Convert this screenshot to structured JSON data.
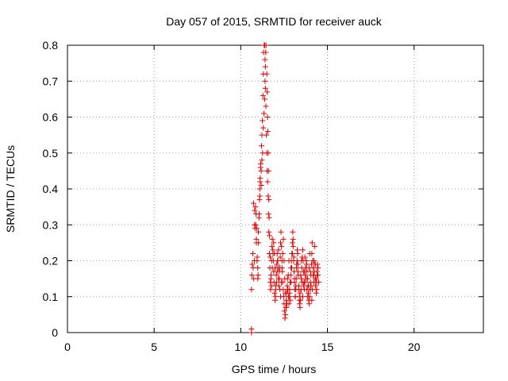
{
  "chart_data": {
    "type": "scatter",
    "title": "Day 057 of 2015, SRMTID for receiver auck",
    "xlabel": "GPS time / hours",
    "ylabel": "SRMTID / TECUs",
    "xlim": [
      0,
      24
    ],
    "ylim": [
      0,
      0.8
    ],
    "xticks": [
      0,
      5,
      10,
      15,
      20
    ],
    "yticks": [
      0,
      0.1,
      0.2,
      0.3,
      0.4,
      0.5,
      0.6,
      0.7,
      0.8
    ],
    "xtick_labels": [
      "0",
      "5",
      "10",
      "15",
      "20"
    ],
    "ytick_labels": [
      "0",
      "0.1",
      "0.2",
      "0.3",
      "0.4",
      "0.5",
      "0.6",
      "0.7",
      "0.8"
    ],
    "grid": true,
    "marker": "+",
    "marker_color": "#e00000",
    "series": [
      {
        "name": "SRMTID",
        "x": [
          10.62,
          10.64,
          10.66,
          10.7,
          10.72,
          10.75,
          10.78,
          10.8,
          10.82,
          10.85,
          10.88,
          10.9,
          10.92,
          10.95,
          10.98,
          11.0,
          11.02,
          11.05,
          11.08,
          11.1,
          11.12,
          11.15,
          11.18,
          11.2,
          11.22,
          11.25,
          11.28,
          11.3,
          11.32,
          11.35,
          11.38,
          11.4,
          11.42,
          11.45,
          11.48,
          11.5,
          11.52,
          11.55,
          11.58,
          11.6,
          11.62,
          11.65,
          11.68,
          11.7,
          11.72,
          11.75,
          11.78,
          11.8,
          11.82,
          11.85,
          11.88,
          11.9,
          11.92,
          11.95,
          11.98,
          12.0,
          12.02,
          12.05,
          12.08,
          12.1,
          12.12,
          12.15,
          12.18,
          12.2,
          12.22,
          12.25,
          12.28,
          12.3,
          12.32,
          12.35,
          12.38,
          12.4,
          12.42,
          12.45,
          12.48,
          12.5,
          12.52,
          12.55,
          12.58,
          12.6,
          12.62,
          12.65,
          12.68,
          12.7,
          12.72,
          12.75,
          12.78,
          12.8,
          12.82,
          12.85,
          12.88,
          12.9,
          12.92,
          12.95,
          12.98,
          13.0,
          13.02,
          13.05,
          13.08,
          13.1,
          13.12,
          13.15,
          13.18,
          13.2,
          13.22,
          13.25,
          13.28,
          13.3,
          13.32,
          13.35,
          13.38,
          13.4,
          13.42,
          13.45,
          13.48,
          13.5,
          13.52,
          13.55,
          13.58,
          13.6,
          13.62,
          13.65,
          13.68,
          13.7,
          13.72,
          13.75,
          13.78,
          13.8,
          13.82,
          13.85,
          13.88,
          13.9,
          13.92,
          13.95,
          13.98,
          14.0,
          14.02,
          14.05,
          14.08,
          14.1,
          14.12,
          14.15,
          14.18,
          14.2,
          14.22,
          14.25,
          14.28,
          14.3,
          14.32,
          14.35,
          14.38,
          14.4,
          14.42,
          14.45,
          10.74,
          10.8,
          10.86,
          10.9,
          10.94,
          10.98,
          11.02,
          11.06,
          11.1,
          11.12,
          11.14,
          11.18,
          11.22,
          11.26,
          11.3,
          11.34,
          11.38,
          11.4,
          11.42,
          11.44,
          11.46,
          11.5,
          11.52,
          11.54,
          11.56,
          11.58,
          11.6,
          11.62,
          11.64,
          11.66,
          11.7,
          11.74,
          11.78,
          11.82,
          11.86,
          11.9,
          11.94,
          11.98,
          12.02,
          12.06,
          12.1,
          12.14,
          12.18,
          12.22,
          12.26,
          12.3,
          12.34,
          12.38,
          12.42,
          12.46,
          12.5,
          12.54,
          12.58,
          12.62,
          12.66,
          12.7,
          12.74,
          12.78,
          12.82,
          12.86,
          12.9,
          12.94,
          12.98,
          13.02,
          13.06,
          13.1,
          13.14,
          13.18,
          13.22,
          13.26,
          13.3,
          13.34,
          13.38,
          13.42,
          13.46,
          13.5,
          13.54,
          13.58,
          13.62,
          13.66,
          13.7,
          13.74,
          13.78,
          13.82,
          13.86,
          13.9,
          13.94,
          13.98,
          14.02,
          14.06,
          14.1,
          14.14,
          14.18,
          14.22,
          14.26,
          14.3,
          14.34,
          14.38,
          14.42,
          14.46,
          14.5,
          10.62,
          10.62
        ],
        "y": [
          0.12,
          0.16,
          0.19,
          0.22,
          0.18,
          0.15,
          0.2,
          0.3,
          0.29,
          0.35,
          0.33,
          0.25,
          0.29,
          0.21,
          0.18,
          0.16,
          0.25,
          0.32,
          0.37,
          0.4,
          0.43,
          0.47,
          0.45,
          0.52,
          0.55,
          0.59,
          0.66,
          0.72,
          0.78,
          0.8,
          0.8,
          0.76,
          0.68,
          0.63,
          0.55,
          0.5,
          0.45,
          0.42,
          0.38,
          0.33,
          0.28,
          0.22,
          0.18,
          0.14,
          0.12,
          0.16,
          0.2,
          0.24,
          0.26,
          0.23,
          0.2,
          0.17,
          0.14,
          0.11,
          0.09,
          0.1,
          0.13,
          0.16,
          0.19,
          0.22,
          0.2,
          0.18,
          0.15,
          0.13,
          0.15,
          0.18,
          0.21,
          0.25,
          0.28,
          0.24,
          0.2,
          0.17,
          0.14,
          0.12,
          0.1,
          0.08,
          0.06,
          0.04,
          0.05,
          0.07,
          0.09,
          0.11,
          0.13,
          0.15,
          0.12,
          0.1,
          0.08,
          0.1,
          0.12,
          0.14,
          0.16,
          0.18,
          0.2,
          0.22,
          0.25,
          0.28,
          0.24,
          0.2,
          0.17,
          0.14,
          0.12,
          0.1,
          0.12,
          0.15,
          0.18,
          0.2,
          0.22,
          0.19,
          0.16,
          0.13,
          0.1,
          0.08,
          0.07,
          0.09,
          0.12,
          0.15,
          0.18,
          0.21,
          0.23,
          0.2,
          0.17,
          0.14,
          0.12,
          0.14,
          0.16,
          0.18,
          0.2,
          0.19,
          0.17,
          0.15,
          0.13,
          0.11,
          0.09,
          0.08,
          0.1,
          0.12,
          0.14,
          0.16,
          0.19,
          0.22,
          0.25,
          0.2,
          0.18,
          0.16,
          0.14,
          0.17,
          0.19,
          0.15,
          0.13,
          0.11,
          0.14,
          0.17,
          0.19,
          0.16,
          0.36,
          0.34,
          0.3,
          0.26,
          0.2,
          0.15,
          0.28,
          0.33,
          0.38,
          0.42,
          0.46,
          0.41,
          0.48,
          0.5,
          0.57,
          0.61,
          0.65,
          0.7,
          0.74,
          0.78,
          0.8,
          0.72,
          0.67,
          0.6,
          0.56,
          0.5,
          0.45,
          0.37,
          0.32,
          0.27,
          0.21,
          0.15,
          0.13,
          0.18,
          0.22,
          0.25,
          0.22,
          0.18,
          0.12,
          0.14,
          0.17,
          0.2,
          0.23,
          0.17,
          0.12,
          0.1,
          0.14,
          0.18,
          0.22,
          0.26,
          0.2,
          0.15,
          0.11,
          0.07,
          0.08,
          0.12,
          0.16,
          0.2,
          0.11,
          0.09,
          0.14,
          0.18,
          0.22,
          0.26,
          0.21,
          0.15,
          0.1,
          0.13,
          0.19,
          0.23,
          0.17,
          0.12,
          0.09,
          0.11,
          0.16,
          0.2,
          0.14,
          0.1,
          0.13,
          0.17,
          0.21,
          0.18,
          0.15,
          0.12,
          0.1,
          0.13,
          0.18,
          0.22,
          0.17,
          0.13,
          0.09,
          0.12,
          0.16,
          0.2,
          0.24,
          0.19,
          0.15,
          0.12,
          0.16,
          0.18,
          0.14,
          0.0,
          0.01
        ]
      }
    ]
  }
}
